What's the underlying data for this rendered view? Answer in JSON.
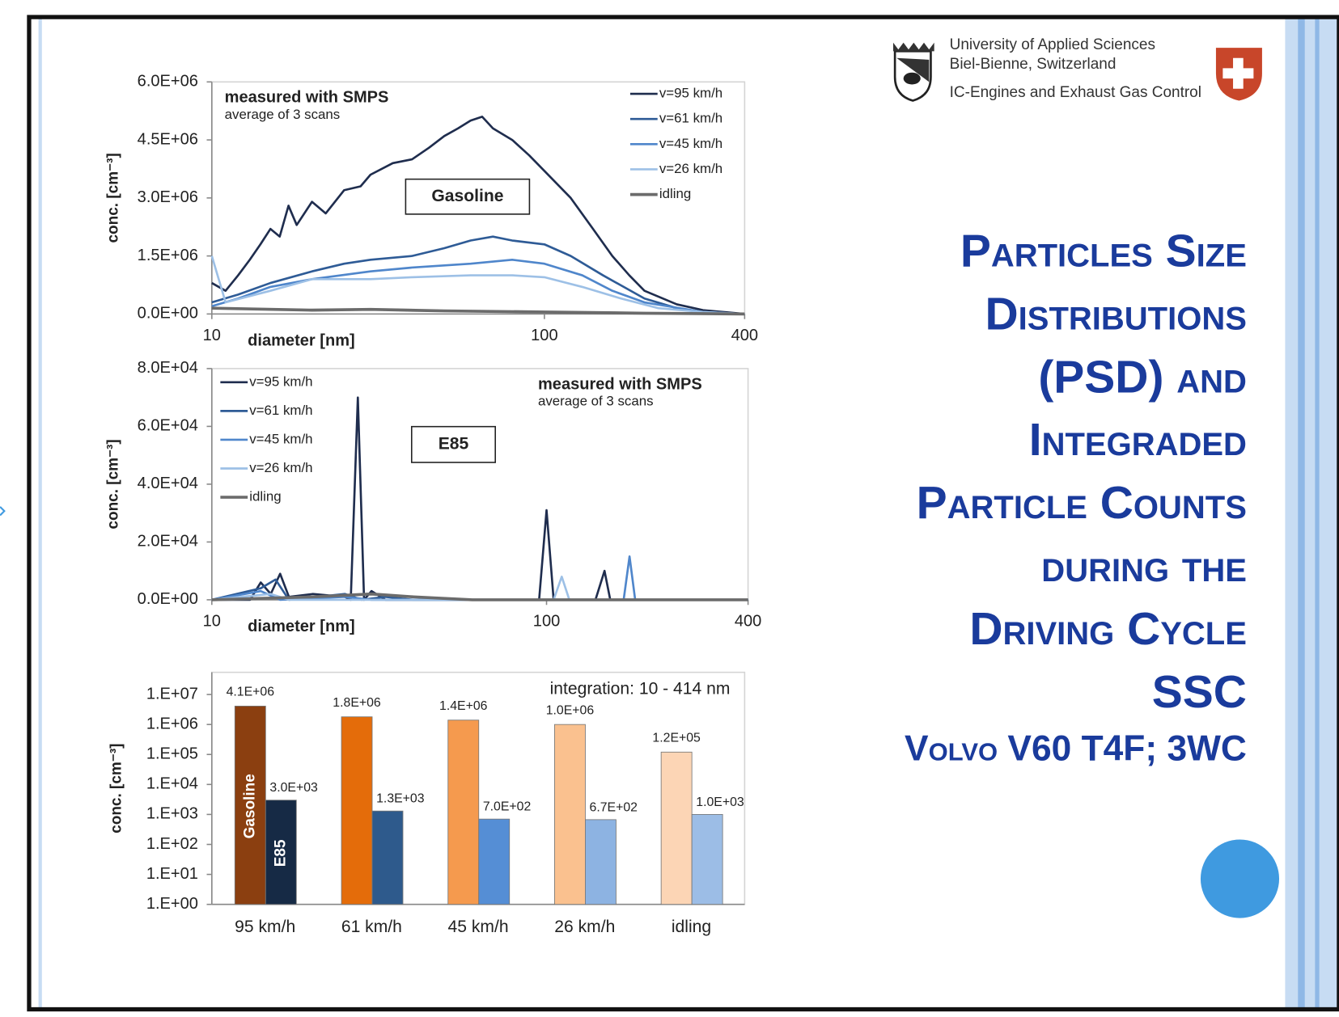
{
  "slide": {
    "header": [
      "University of Applied Sciences",
      "Biel-Bienne, Switzerland",
      "IC-Engines and Exhaust Gas Control"
    ],
    "title": [
      "Particles Size",
      "Distributions",
      "(PSD) and",
      "Integraded",
      "Particle Counts",
      "during the",
      "Driving Cycle",
      "SSC"
    ],
    "subtitle": "Volvo V60 T4F; 3WC"
  },
  "chart_data": [
    {
      "type": "line",
      "xscale": "log",
      "xlabel": "diameter [nm]",
      "ylabel": "conc. [cm⁻³]",
      "annotations": [
        "measured with SMPS",
        "average of 3 scans"
      ],
      "boxed_label": "Gasoline",
      "legend": "upper right",
      "xlim": [
        10,
        400
      ],
      "xticks": [
        10,
        100,
        400
      ],
      "ylim": [
        0,
        6000000
      ],
      "yticks": [
        {
          "value": 0,
          "label": "0.0E+00"
        },
        {
          "value": 1500000,
          "label": "1.5E+06"
        },
        {
          "value": 3000000,
          "label": "3.0E+06"
        },
        {
          "value": 4500000,
          "label": "4.5E+06"
        },
        {
          "value": 6000000,
          "label": "6.0E+06"
        }
      ],
      "series": [
        {
          "name": "v=95 km/h",
          "color": "#1f2d4e",
          "x": [
            10,
            11,
            12,
            13,
            14,
            15,
            16,
            17,
            18,
            20,
            22,
            25,
            28,
            30,
            35,
            40,
            45,
            50,
            55,
            60,
            65,
            70,
            80,
            90,
            100,
            120,
            140,
            160,
            180,
            200,
            250,
            300,
            400
          ],
          "values": [
            800000,
            600000,
            1000000,
            1400000,
            1800000,
            2200000,
            2000000,
            2800000,
            2300000,
            2900000,
            2600000,
            3200000,
            3300000,
            3600000,
            3900000,
            4000000,
            4300000,
            4600000,
            4800000,
            5000000,
            5100000,
            4800000,
            4500000,
            4100000,
            3700000,
            3000000,
            2200000,
            1500000,
            1000000,
            600000,
            250000,
            100000,
            0
          ]
        },
        {
          "name": "v=61 km/h",
          "color": "#2e5b96",
          "x": [
            10,
            12,
            15,
            20,
            25,
            30,
            40,
            50,
            60,
            70,
            80,
            100,
            120,
            150,
            200,
            250,
            300,
            400
          ],
          "values": [
            300000,
            500000,
            800000,
            1100000,
            1300000,
            1400000,
            1500000,
            1700000,
            1900000,
            2000000,
            1900000,
            1800000,
            1500000,
            1000000,
            400000,
            150000,
            50000,
            0
          ]
        },
        {
          "name": "v=45 km/h",
          "color": "#4f86cb",
          "x": [
            10,
            12,
            15,
            20,
            30,
            40,
            60,
            80,
            100,
            130,
            160,
            200,
            300,
            400
          ],
          "values": [
            200000,
            400000,
            700000,
            900000,
            1100000,
            1200000,
            1300000,
            1400000,
            1300000,
            1000000,
            600000,
            300000,
            50000,
            0
          ]
        },
        {
          "name": "v=26 km/h",
          "color": "#9dc0e6",
          "x": [
            10,
            11,
            15,
            20,
            30,
            40,
            60,
            80,
            100,
            130,
            170,
            220,
            300,
            400
          ],
          "values": [
            1500000,
            300000,
            600000,
            900000,
            900000,
            950000,
            1000000,
            1000000,
            950000,
            700000,
            400000,
            150000,
            50000,
            0
          ]
        },
        {
          "name": "idling",
          "color": "#6b6b6b",
          "x": [
            10,
            20,
            30,
            50,
            100,
            200,
            400
          ],
          "values": [
            150000,
            100000,
            120000,
            80000,
            50000,
            20000,
            0
          ]
        }
      ]
    },
    {
      "type": "line",
      "xscale": "log",
      "xlabel": "diameter [nm]",
      "ylabel": "conc. [cm⁻³]",
      "annotations": [
        "measured with SMPS",
        "average of 3 scans"
      ],
      "boxed_label": "E85",
      "legend": "upper left",
      "xlim": [
        10,
        400
      ],
      "xticks": [
        10,
        100,
        400
      ],
      "ylim": [
        0,
        80000
      ],
      "yticks": [
        {
          "value": 0,
          "label": "0.0E+00"
        },
        {
          "value": 20000,
          "label": "2.0E+04"
        },
        {
          "value": 40000,
          "label": "4.0E+04"
        },
        {
          "value": 60000,
          "label": "6.0E+04"
        },
        {
          "value": 80000,
          "label": "8.0E+04"
        }
      ],
      "series": [
        {
          "name": "v=95 km/h",
          "color": "#1f2d4e",
          "x": [
            10,
            13,
            14,
            15,
            16,
            17,
            20,
            25,
            26,
            27.3,
            28.5,
            30,
            33,
            95,
            100,
            105,
            140,
            149,
            155,
            400
          ],
          "values": [
            0,
            0,
            6000,
            2000,
            9000,
            1000,
            2000,
            1000,
            0,
            70000,
            0,
            3000,
            0,
            0,
            31000,
            0,
            0,
            10000,
            0,
            0
          ]
        },
        {
          "name": "v=61 km/h",
          "color": "#2e5b96",
          "x": [
            10,
            14,
            15.5,
            17,
            25,
            28,
            33,
            40,
            400
          ],
          "values": [
            0,
            4000,
            7000,
            0,
            2000,
            0,
            1000,
            0,
            0
          ]
        },
        {
          "name": "v=45 km/h",
          "color": "#4f86cb",
          "x": [
            10,
            14,
            16,
            25,
            30,
            170,
            177,
            184,
            400
          ],
          "values": [
            0,
            3000,
            0,
            1000,
            0,
            0,
            15000,
            0,
            0
          ]
        },
        {
          "name": "v=26 km/h",
          "color": "#9dc0e6",
          "x": [
            10,
            15,
            17,
            105,
            111,
            117,
            400
          ],
          "values": [
            0,
            2000,
            0,
            0,
            8000,
            0,
            0
          ]
        },
        {
          "name": "idling",
          "color": "#6b6b6b",
          "x": [
            10,
            20,
            30,
            40,
            60,
            400
          ],
          "values": [
            0,
            1000,
            2000,
            1000,
            0,
            0
          ]
        }
      ]
    },
    {
      "type": "bar",
      "yscale": "log",
      "ylabel": "conc. [cm⁻³]",
      "annotations": [
        "integration: 10 - 414 nm"
      ],
      "categories": [
        "95 km/h",
        "61 km/h",
        "45 km/h",
        "26 km/h",
        "idling"
      ],
      "ylim": [
        1,
        10000000
      ],
      "yticks": [
        {
          "value": 1,
          "label": "1.E+00"
        },
        {
          "value": 10,
          "label": "1.E+01"
        },
        {
          "value": 100,
          "label": "1.E+02"
        },
        {
          "value": 1000,
          "label": "1.E+03"
        },
        {
          "value": 10000,
          "label": "1.E+04"
        },
        {
          "value": 100000,
          "label": "1.E+05"
        },
        {
          "value": 1000000,
          "label": "1.E+06"
        },
        {
          "value": 10000000,
          "label": "1.E+07"
        }
      ],
      "series": [
        {
          "name": "Gasoline",
          "colors": [
            "#8b3f10",
            "#e46c0a",
            "#f59a4e",
            "#fac18f",
            "#fcd5b5"
          ],
          "values": [
            4100000,
            1800000,
            1400000,
            1000000,
            120000
          ],
          "value_labels": [
            "4.1E+06",
            "1.8E+06",
            "1.4E+06",
            "1.0E+06",
            "1.2E+05"
          ]
        },
        {
          "name": "E85",
          "colors": [
            "#162a45",
            "#2e5a8c",
            "#558ed5",
            "#8db3e2",
            "#9cbde6"
          ],
          "values": [
            3000,
            1300,
            700,
            670,
            1000
          ],
          "value_labels": [
            "3.0E+03",
            "1.3E+03",
            "7.0E+02",
            "6.7E+02",
            "1.0E+03"
          ]
        }
      ]
    }
  ]
}
